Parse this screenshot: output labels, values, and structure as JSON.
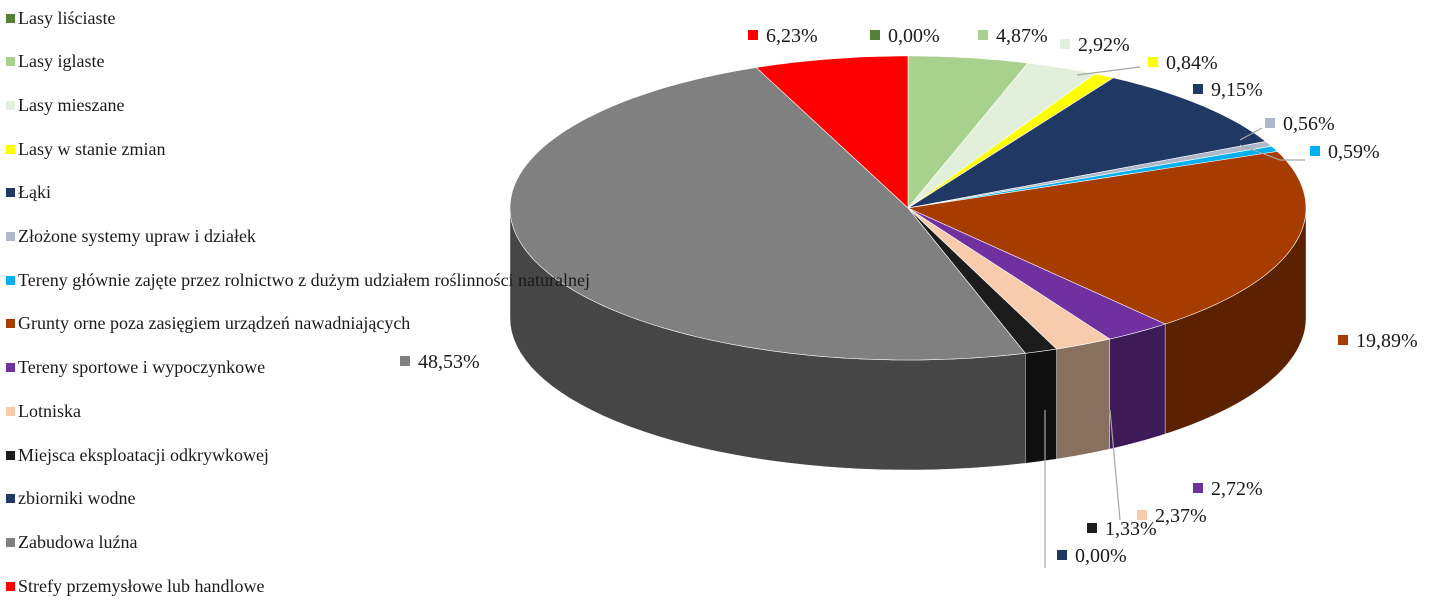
{
  "chart_data": {
    "type": "pie",
    "title": "",
    "legend_position": "left",
    "style": "3d exploded pie",
    "slices": [
      {
        "label": "Lasy liściaste",
        "value": 0.0,
        "value_label": "0,00%",
        "color": "#548235"
      },
      {
        "label": "Lasy iglaste",
        "value": 4.87,
        "value_label": "4,87%",
        "color": "#a9d18e"
      },
      {
        "label": "Lasy mieszane",
        "value": 2.92,
        "value_label": "2,92%",
        "color": "#e2efda"
      },
      {
        "label": "Lasy w stanie zmian",
        "value": 0.84,
        "value_label": "0,84%",
        "color": "#ffff00"
      },
      {
        "label": "Łąki",
        "value": 9.15,
        "value_label": "9,15%",
        "color": "#1f3864"
      },
      {
        "label": "Złożone systemy upraw i działek",
        "value": 0.56,
        "value_label": "0,56%",
        "color": "#adb9ca"
      },
      {
        "label": "Tereny głównie zajęte przez rolnictwo z dużym udziałem roślinności naturalnej",
        "value": 0.59,
        "value_label": "0,59%",
        "color": "#00b0f0"
      },
      {
        "label": "Grunty orne poza zasięgiem urządzeń nawadniających",
        "value": 19.89,
        "value_label": "19,89%",
        "color": "#a63c00"
      },
      {
        "label": "Tereny sportowe i wypoczynkowe",
        "value": 2.72,
        "value_label": "2,72%",
        "color": "#7030a0"
      },
      {
        "label": "Lotniska",
        "value": 2.37,
        "value_label": "2,37%",
        "color": "#f8cbad"
      },
      {
        "label": "Miejsca eksploatacji odkrywkowej",
        "value": 1.33,
        "value_label": "1,33%",
        "color": "#1c1c1c"
      },
      {
        "label": "zbiorniki wodne",
        "value": 0.0,
        "value_label": "0,00%",
        "color": "#1f3864"
      },
      {
        "label": "Zabudowa luźna",
        "value": 48.53,
        "value_label": "48,53%",
        "color": "#808080"
      },
      {
        "label": "Strefy przemysłowe lub handlowe",
        "value": 6.23,
        "value_label": "6,23%",
        "color": "#ff0000"
      }
    ]
  }
}
